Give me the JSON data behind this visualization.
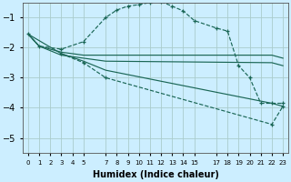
{
  "xlabel": "Humidex (Indice chaleur)",
  "bg_color": "#cceeff",
  "grid_color": "#aacccc",
  "line_color": "#1a6655",
  "xlim": [
    -0.5,
    23.5
  ],
  "ylim": [
    -5.5,
    -0.5
  ],
  "yticks": [
    -5,
    -4,
    -3,
    -2,
    -1
  ],
  "xtick_positions": [
    0,
    1,
    2,
    3,
    4,
    5,
    7,
    8,
    9,
    10,
    11,
    12,
    13,
    14,
    15,
    17,
    18,
    19,
    20,
    21,
    22,
    23
  ],
  "xtick_labels": [
    "0",
    "1",
    "2",
    "3",
    "4",
    "5",
    "7",
    "8",
    "9",
    "10",
    "11",
    "12",
    "13",
    "14",
    "15",
    "17",
    "18",
    "19",
    "20",
    "21",
    "22",
    "23"
  ],
  "series": [
    {
      "x": [
        0,
        1,
        3,
        5,
        7,
        8,
        9,
        10,
        11,
        12,
        13,
        14,
        15,
        17,
        18,
        19,
        20,
        21,
        22,
        23
      ],
      "y": [
        -1.55,
        -1.95,
        -2.05,
        -1.8,
        -1.0,
        -0.75,
        -0.62,
        -0.57,
        -0.5,
        -0.47,
        -0.62,
        -0.78,
        -1.1,
        -1.35,
        -1.45,
        -2.6,
        -3.0,
        -3.85,
        -3.85,
        -3.85
      ],
      "marker": "+",
      "linestyle": "--"
    },
    {
      "x": [
        0,
        1,
        3,
        5,
        7,
        22,
        23
      ],
      "y": [
        -1.55,
        -1.95,
        -2.15,
        -2.25,
        -2.25,
        -2.25,
        -2.35
      ],
      "marker": null,
      "linestyle": "-"
    },
    {
      "x": [
        0,
        1,
        3,
        5,
        7,
        22,
        23
      ],
      "y": [
        -1.55,
        -1.95,
        -2.25,
        -2.35,
        -2.45,
        -2.5,
        -2.6
      ],
      "marker": null,
      "linestyle": "-"
    },
    {
      "x": [
        0,
        3,
        5,
        7,
        22,
        23
      ],
      "y": [
        -1.55,
        -2.2,
        -2.45,
        -2.75,
        -3.85,
        -3.95
      ],
      "marker": null,
      "linestyle": "-"
    },
    {
      "x": [
        3,
        5,
        7,
        22,
        23
      ],
      "y": [
        -2.2,
        -2.5,
        -3.0,
        -4.55,
        -3.95
      ],
      "marker": "+",
      "linestyle": "--"
    }
  ]
}
